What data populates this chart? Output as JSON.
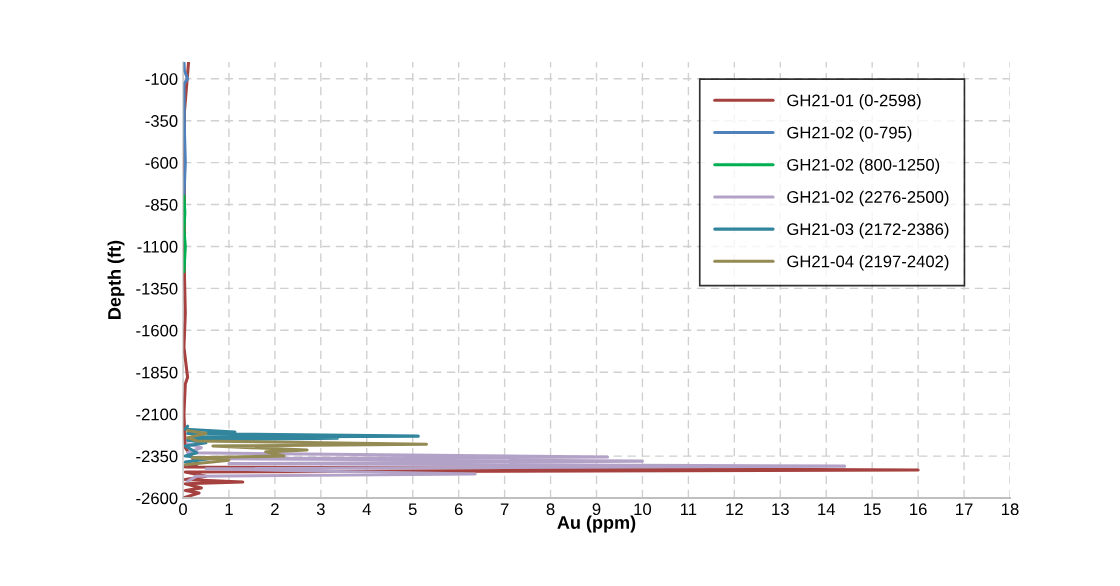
{
  "chart_data": {
    "type": "line",
    "xlabel": "Au (ppm)",
    "ylabel": "Depth (ft)",
    "xlim": [
      0,
      18
    ],
    "xticks": [
      0,
      1,
      2,
      3,
      4,
      5,
      6,
      7,
      8,
      9,
      10,
      11,
      12,
      13,
      14,
      15,
      16,
      17,
      18
    ],
    "ylim": [
      -2600,
      0
    ],
    "yticks": [
      -2600,
      -2350,
      -2100,
      -1850,
      -1600,
      -1350,
      -1100,
      -850,
      -600,
      -350,
      -100
    ],
    "grid": true,
    "legend": "top right",
    "marker": "none",
    "line_style": "solid",
    "series": [
      {
        "name": "GH21-01 (0-2598)",
        "color": "#a5413e",
        "x": [
          0.12,
          0.03,
          0.03,
          0.05,
          0.02,
          0.1,
          0.05,
          0.02,
          0.05,
          0.3,
          0.05,
          16.0,
          0.05,
          0.5,
          0.05,
          1.3,
          0.05,
          0.4,
          0.05,
          0.35,
          0.02
        ],
        "values": [
          -5,
          -300,
          -1250,
          -1500,
          -1700,
          -1880,
          -1920,
          -2100,
          -2300,
          -2400,
          -2415,
          -2433,
          -2445,
          -2470,
          -2490,
          -2505,
          -2515,
          -2540,
          -2555,
          -2570,
          -2598
        ]
      },
      {
        "name": "GH21-02 (0-795)",
        "color": "#4f81bd",
        "x": [
          0.02,
          0.03,
          0.1,
          0.02,
          0.03,
          0.05,
          0.02
        ],
        "values": [
          0,
          -50,
          -100,
          -130,
          -400,
          -600,
          -795
        ]
      },
      {
        "name": "GH21-02 (800-1250)",
        "color": "#00b050",
        "x": [
          0.02,
          0.04,
          0.02,
          0.05,
          0.02
        ],
        "values": [
          -800,
          -900,
          -1000,
          -1100,
          -1250
        ]
      },
      {
        "name": "GH21-02 (2276-2500)",
        "color": "#b3a2c7",
        "x": [
          0.1,
          0.4,
          0.1,
          9.24,
          0.5,
          10.0,
          1.0,
          14.4,
          0.5,
          3.0,
          6.36,
          0.3,
          0.1
        ],
        "values": [
          -2276,
          -2300,
          -2330,
          -2356,
          -2365,
          -2380,
          -2395,
          -2410,
          -2425,
          -2440,
          -2457,
          -2470,
          -2500
        ]
      },
      {
        "name": "GH21-03 (2172-2386)",
        "color": "#31859c",
        "x": [
          0.1,
          0.05,
          1.13,
          0.1,
          5.12,
          0.2,
          3.36,
          0.1,
          0.5,
          0.05,
          0.3,
          0.05,
          0.6,
          0.05
        ],
        "values": [
          -2172,
          -2190,
          -2207,
          -2215,
          -2231,
          -2237,
          -2243,
          -2255,
          -2270,
          -2290,
          -2330,
          -2350,
          -2365,
          -2386
        ]
      },
      {
        "name": "GH21-04 (2197-2402)",
        "color": "#948a54",
        "x": [
          0.1,
          0.5,
          0.1,
          0.3,
          5.3,
          0.65,
          2.7,
          1.8,
          2.2,
          0.2,
          1.0,
          0.05
        ],
        "values": [
          -2197,
          -2215,
          -2240,
          -2260,
          -2279,
          -2290,
          -2314,
          -2325,
          -2350,
          -2360,
          -2375,
          -2402
        ]
      }
    ]
  }
}
